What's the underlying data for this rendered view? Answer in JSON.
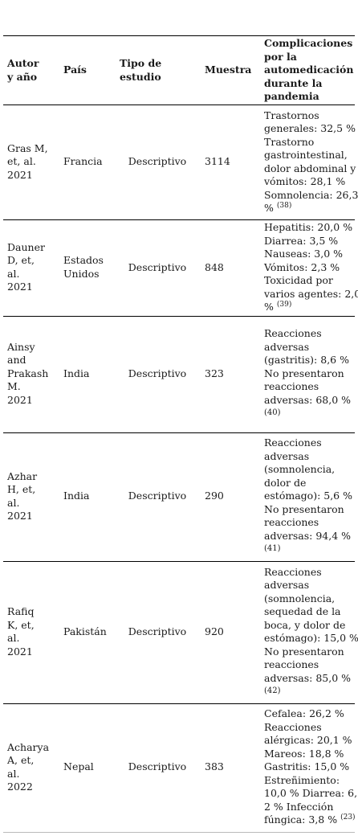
{
  "headers": {
    "autor": [
      "Autor",
      "y año"
    ],
    "pais": "País",
    "tipo": [
      "Tipo de",
      "estudio"
    ],
    "muestra": "Muestra",
    "complicaciones": [
      "Complicaciones",
      "por la",
      "automedicación",
      "durante la",
      "pandemia"
    ]
  },
  "rows": [
    {
      "autor": [
        "Gras M,",
        "et, al.",
        "2021"
      ],
      "pais": [
        "Francia"
      ],
      "tipo": "Descriptivo",
      "muestra": "3114",
      "complicaciones": [
        "Trastornos",
        "generales: 32,5 %",
        "Trastorno",
        "gastrointestinal,",
        "dolor abdominal y",
        "vómitos: 28,1 %",
        "Somnolencia: 26,3",
        "%"
      ],
      "ref": "(38)"
    },
    {
      "autor": [
        "Dauner",
        "D, et,",
        "al.",
        "2021"
      ],
      "pais": [
        "Estados",
        "Unidos"
      ],
      "tipo": "Descriptivo",
      "muestra": "848",
      "complicaciones": [
        "Hepatitis: 20,0 %",
        "Diarrea: 3,5 %",
        "Nauseas: 3,0 %",
        "Vómitos: 2,3 %",
        "Toxicidad por",
        "varios agentes: 2,0",
        "%"
      ],
      "ref": "(39)"
    },
    {
      "autor": [
        "Ainsy",
        "and",
        "Prakash",
        " M.",
        "2021"
      ],
      "pais": [
        "India"
      ],
      "tipo": "Descriptivo",
      "muestra": "323",
      "complicaciones": [
        "Reacciones",
        "adversas",
        "(gastritis): 8,6 %",
        "No presentaron",
        "reacciones",
        "adversas: 68,0 %"
      ],
      "ref": "(40)"
    },
    {
      "autor": [
        "Azhar",
        "H, et,",
        "al.",
        "2021"
      ],
      "pais": [
        "  India"
      ],
      "tipo": "Descriptivo",
      "muestra": "290",
      "complicaciones": [
        "Reacciones",
        "adversas",
        "(somnolencia,",
        "dolor de",
        "estómago): 5,6 %",
        "No presentaron",
        "reacciones",
        "adversas: 94,4 %"
      ],
      "ref": "(41)"
    },
    {
      "autor": [
        "Rafiq",
        "K, et,",
        "al.",
        "2021"
      ],
      "pais": [
        "Pakistán"
      ],
      "tipo": "Descriptivo",
      "muestra": "920",
      "complicaciones": [
        "Reacciones",
        "adversas",
        "(somnolencia,",
        "sequedad de la",
        "boca, y dolor de",
        "estómago): 15,0 %",
        "No presentaron",
        "reacciones",
        "adversas: 85,0 %"
      ],
      "ref": "(42)"
    },
    {
      "autor": [
        "Acharya",
        "  A, et,",
        "al.",
        "2022"
      ],
      "pais": [
        "Nepal"
      ],
      "tipo": "Descriptivo",
      "muestra": "383",
      "complicaciones": [
        "Cefalea: 26,2 %",
        "Reacciones",
        "alérgicas: 20,1 %",
        "Mareos: 18,8 %",
        "Gastritis: 15,0 %",
        "Estreñimiento:",
        "10,0 % Diarrea: 6,",
        "2 % Infección",
        "fúngica: 3,8 %"
      ],
      "ref": "(23)"
    }
  ]
}
